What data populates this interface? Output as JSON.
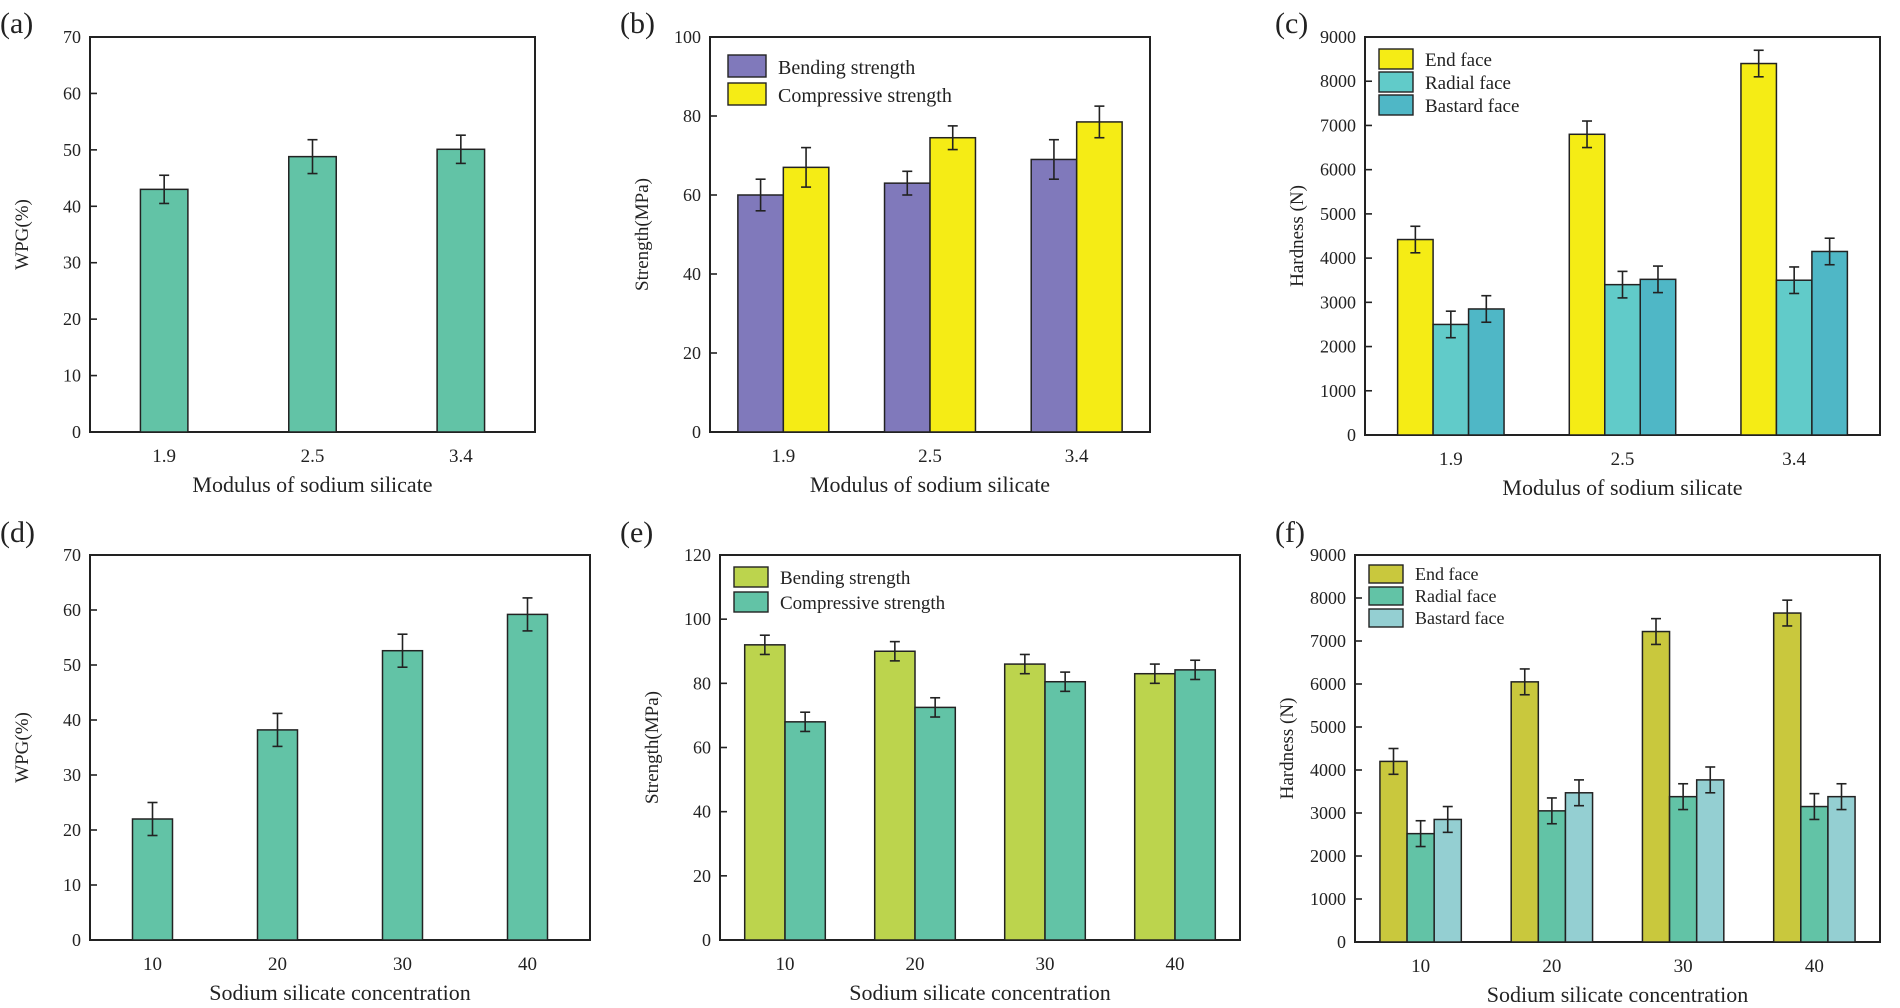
{
  "colors": {
    "teal": "#62c3a6",
    "purple": "#8079bb",
    "yellow": "#f5ec15",
    "cyan": "#61cbc9",
    "blue": "#4fb7c6",
    "olive": "#bcd44d",
    "olive_dark": "#c9c83d",
    "pale_blue": "#94cfd2"
  },
  "chart_data": [
    {
      "panel": "(a)",
      "type": "bar",
      "xlabel": "Modulus of sodium silicate",
      "ylabel": "WPG(%)",
      "ylim": [
        0,
        70
      ],
      "yticks": [
        0,
        10,
        20,
        30,
        40,
        50,
        60,
        70
      ],
      "categories": [
        "1.9",
        "2.5",
        "3.4"
      ],
      "legend": null,
      "series": [
        {
          "name": "WPG",
          "color": "#62c3a6",
          "values": [
            43,
            48.8,
            50.1
          ],
          "errors": [
            2.5,
            3,
            2.5
          ]
        }
      ]
    },
    {
      "panel": "(b)",
      "type": "bar",
      "xlabel": "Modulus of sodium silicate",
      "ylabel": "Strength(MPa)",
      "ylim": [
        0,
        100
      ],
      "yticks": [
        0,
        20,
        40,
        60,
        80,
        100
      ],
      "categories": [
        "1.9",
        "2.5",
        "3.4"
      ],
      "legend": "top-left",
      "series": [
        {
          "name": "Bending strength",
          "color": "#8079bb",
          "values": [
            60,
            63,
            69
          ],
          "errors": [
            4,
            3,
            5
          ]
        },
        {
          "name": "Compressive strength",
          "color": "#f5ec15",
          "values": [
            67,
            74.5,
            78.5
          ],
          "errors": [
            5,
            3,
            4
          ]
        }
      ]
    },
    {
      "panel": "(c)",
      "type": "bar",
      "xlabel": "Modulus of sodium silicate",
      "ylabel": "Hardness (N)",
      "ylim": [
        0,
        9000
      ],
      "yticks": [
        0,
        1000,
        2000,
        3000,
        4000,
        5000,
        6000,
        7000,
        8000,
        9000
      ],
      "categories": [
        "1.9",
        "2.5",
        "3.4"
      ],
      "legend": "top-left",
      "series": [
        {
          "name": "End face",
          "color": "#f5ec15",
          "values": [
            4420,
            6800,
            8400
          ],
          "errors": [
            300,
            300,
            300
          ]
        },
        {
          "name": "Radial face",
          "color": "#61cbc9",
          "values": [
            2500,
            3400,
            3500
          ],
          "errors": [
            300,
            300,
            300
          ]
        },
        {
          "name": "Bastard face",
          "color": "#4fb7c6",
          "values": [
            2850,
            3520,
            4150
          ],
          "errors": [
            300,
            300,
            300
          ]
        }
      ]
    },
    {
      "panel": "(d)",
      "type": "bar",
      "xlabel": "Sodium silicate concentration",
      "ylabel": "WPG(%)",
      "ylim": [
        0,
        70
      ],
      "yticks": [
        0,
        10,
        20,
        30,
        40,
        50,
        60,
        70
      ],
      "categories": [
        "10",
        "20",
        "30",
        "40"
      ],
      "legend": null,
      "series": [
        {
          "name": "WPG",
          "color": "#62c3a6",
          "values": [
            22,
            38.2,
            52.6,
            59.2
          ],
          "errors": [
            3,
            3,
            3,
            3
          ]
        }
      ]
    },
    {
      "panel": "(e)",
      "type": "bar",
      "xlabel": "Sodium silicate concentration",
      "ylabel": "Strength(MPa)",
      "ylim": [
        0,
        120
      ],
      "yticks": [
        0,
        20,
        40,
        60,
        80,
        100,
        120
      ],
      "categories": [
        "10",
        "20",
        "30",
        "40"
      ],
      "legend": "top-left",
      "series": [
        {
          "name": "Bending strength",
          "color": "#bcd44d",
          "values": [
            92,
            90,
            86,
            83
          ],
          "errors": [
            3,
            3,
            3,
            3
          ]
        },
        {
          "name": "Compressive strength",
          "color": "#62c3a6",
          "values": [
            68,
            72.5,
            80.5,
            84.2
          ],
          "errors": [
            3,
            3,
            3,
            3
          ]
        }
      ]
    },
    {
      "panel": "(f)",
      "type": "bar",
      "xlabel": "Sodium silicate concentration",
      "ylabel": "Hardness (N)",
      "ylim": [
        0,
        9000
      ],
      "yticks": [
        0,
        1000,
        2000,
        3000,
        4000,
        5000,
        6000,
        7000,
        8000,
        9000
      ],
      "categories": [
        "10",
        "20",
        "30",
        "40"
      ],
      "legend": "top-left",
      "series": [
        {
          "name": "End face",
          "color": "#c9c83d",
          "values": [
            4200,
            6050,
            7220,
            7650
          ],
          "errors": [
            300,
            300,
            300,
            300
          ]
        },
        {
          "name": "Radial face",
          "color": "#62c3a6",
          "values": [
            2520,
            3050,
            3380,
            3150
          ],
          "errors": [
            300,
            300,
            300,
            300
          ]
        },
        {
          "name": "Bastard face",
          "color": "#94cfd2",
          "values": [
            2850,
            3470,
            3770,
            3380
          ],
          "errors": [
            300,
            300,
            300,
            300
          ]
        }
      ]
    }
  ]
}
